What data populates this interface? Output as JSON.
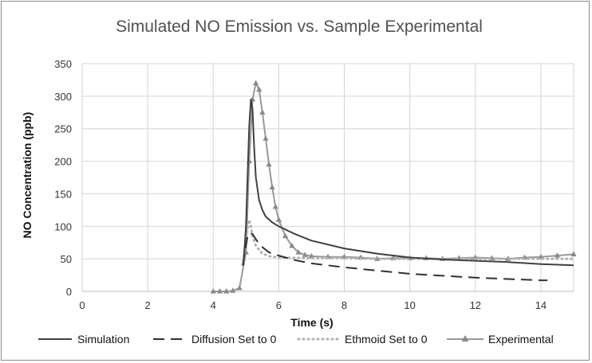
{
  "chart_data": {
    "type": "line",
    "title": "Simulated NO Emission vs. Sample Experimental",
    "xlabel": "Time (s)",
    "ylabel": "NO Concentration (ppb)",
    "xlim": [
      0,
      15
    ],
    "ylim": [
      0,
      350
    ],
    "x_ticks": [
      0,
      2,
      4,
      6,
      8,
      10,
      12,
      14
    ],
    "y_ticks": [
      0,
      50,
      100,
      150,
      200,
      250,
      300,
      350
    ],
    "grid": true,
    "legend_position": "bottom",
    "series": [
      {
        "name": "Simulation",
        "style": "solid",
        "color": "#404040",
        "x": [
          4.92,
          5.0,
          5.05,
          5.1,
          5.15,
          5.2,
          5.25,
          5.3,
          5.4,
          5.5,
          5.6,
          5.8,
          6.0,
          6.5,
          7.0,
          8.0,
          9.0,
          10.0,
          11.0,
          12.0,
          13.0,
          14.0,
          15.0
        ],
        "y": [
          40,
          100,
          180,
          255,
          295,
          280,
          220,
          175,
          140,
          125,
          115,
          106,
          100,
          88,
          78,
          66,
          58,
          52,
          49,
          47,
          45,
          42,
          40
        ]
      },
      {
        "name": "Diffusion Set to 0",
        "style": "dashed",
        "color": "#303030",
        "x": [
          4.9,
          5.0,
          5.05,
          5.1,
          5.2,
          5.3,
          5.45,
          5.7,
          6.0,
          6.5,
          7.0,
          8.0,
          9.0,
          10.0,
          11.0,
          12.0,
          13.0,
          14.0,
          14.2
        ],
        "y": [
          40,
          70,
          85,
          90,
          88,
          80,
          70,
          60,
          55,
          48,
          43,
          37,
          32,
          27,
          24,
          21,
          19,
          17,
          17
        ]
      },
      {
        "name": "Ethmoid Set to 0",
        "style": "dotted",
        "color": "#b0b0b0",
        "x": [
          4.9,
          5.0,
          5.1,
          5.15,
          5.2,
          5.3,
          5.5,
          5.7,
          6.0,
          7.0,
          8.0,
          9.0,
          10.0,
          11.0,
          12.0,
          13.0,
          14.0,
          15.0
        ],
        "y": [
          40,
          80,
          110,
          100,
          85,
          70,
          58,
          54,
          52,
          51,
          51,
          50,
          50,
          50,
          50,
          50,
          50,
          50
        ]
      },
      {
        "name": "Experimental",
        "style": "solid-triangles",
        "color": "#999999",
        "x": [
          4.0,
          4.2,
          4.4,
          4.6,
          4.8,
          5.0,
          5.1,
          5.2,
          5.3,
          5.4,
          5.5,
          5.6,
          5.7,
          5.8,
          5.9,
          6.0,
          6.2,
          6.4,
          6.6,
          6.8,
          7.0,
          7.5,
          8.0,
          8.5,
          9.0,
          9.5,
          10.0,
          10.5,
          11.0,
          11.5,
          12.0,
          12.5,
          13.0,
          13.5,
          14.0,
          14.5,
          15.0
        ],
        "y": [
          0,
          0,
          0,
          1,
          5,
          60,
          200,
          295,
          320,
          310,
          275,
          235,
          195,
          160,
          130,
          110,
          85,
          70,
          60,
          56,
          54,
          53,
          53,
          52,
          50,
          51,
          51,
          51,
          50,
          51,
          52,
          51,
          50,
          52,
          53,
          55,
          57
        ]
      }
    ]
  }
}
